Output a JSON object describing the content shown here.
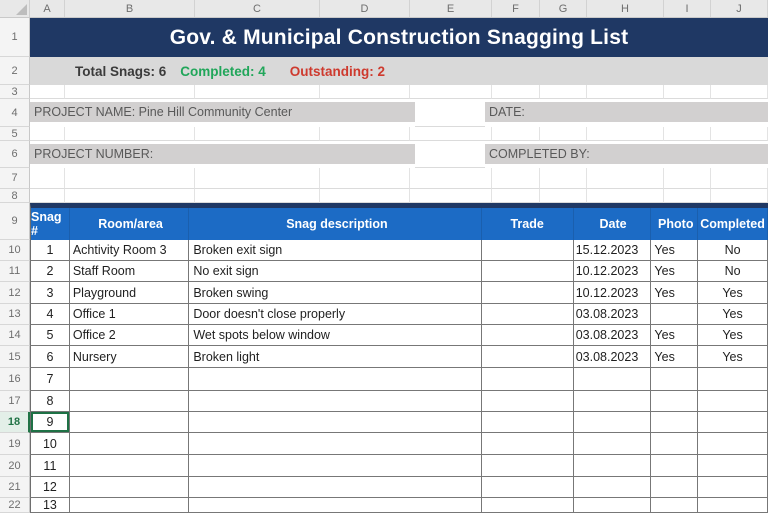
{
  "title": "Gov. & Municipal Construction Snagging List",
  "summary": {
    "total": "Total Snags: 6",
    "completed": "Completed: 4",
    "outstanding": "Outstanding: 2"
  },
  "project": {
    "name_label": "PROJECT NAME: Pine Hill Community Center",
    "date_label": "DATE:",
    "number_label": "PROJECT NUMBER:",
    "completed_by_label": "COMPLETED BY:"
  },
  "sheet": {
    "column_headers": [
      "A",
      "B",
      "C",
      "D",
      "E",
      "F",
      "G",
      "H",
      "I",
      "J"
    ],
    "row_headers": [
      "1",
      "2",
      "3",
      "4",
      "5",
      "6",
      "7",
      "8",
      "9",
      "10",
      "11",
      "12",
      "13",
      "14",
      "15",
      "16",
      "17",
      "18",
      "19",
      "20",
      "21",
      "22"
    ],
    "selected_cell": "A18"
  },
  "table": {
    "headers": [
      "Snag #",
      "Room/area",
      "Snag description",
      "Trade",
      "Date",
      "Photo",
      "Completed"
    ],
    "rows": [
      {
        "snag": "1",
        "room": "Achtivity Room 3",
        "desc": "Broken exit sign",
        "trade": "",
        "date": "15.12.2023",
        "photo": "Yes",
        "completed": "No"
      },
      {
        "snag": "2",
        "room": "Staff Room",
        "desc": "No exit sign",
        "trade": "",
        "date": "10.12.2023",
        "photo": "Yes",
        "completed": "No"
      },
      {
        "snag": "3",
        "room": "Playground",
        "desc": "Broken swing",
        "trade": "",
        "date": "10.12.2023",
        "photo": "Yes",
        "completed": "Yes"
      },
      {
        "snag": "4",
        "room": "Office 1",
        "desc": "Door doesn't close properly",
        "trade": "",
        "date": "03.08.2023",
        "photo": "",
        "completed": "Yes"
      },
      {
        "snag": "5",
        "room": "Office 2",
        "desc": "Wet spots below window",
        "trade": "",
        "date": "03.08.2023",
        "photo": "Yes",
        "completed": "Yes"
      },
      {
        "snag": "6",
        "room": "Nursery",
        "desc": "Broken light",
        "trade": "",
        "date": "03.08.2023",
        "photo": "Yes",
        "completed": "Yes"
      }
    ],
    "empty_rows": [
      "7",
      "8",
      "9",
      "10",
      "11",
      "12",
      "13"
    ]
  },
  "colors": {
    "title_bg": "#1F3864",
    "table_header_bg": "#1C6BC5",
    "summary_bg": "#D9D9D9",
    "field_bg": "#D2D0D0",
    "green": "#21A65A",
    "red": "#CE3A2E",
    "selection_green": "#1E7145"
  }
}
